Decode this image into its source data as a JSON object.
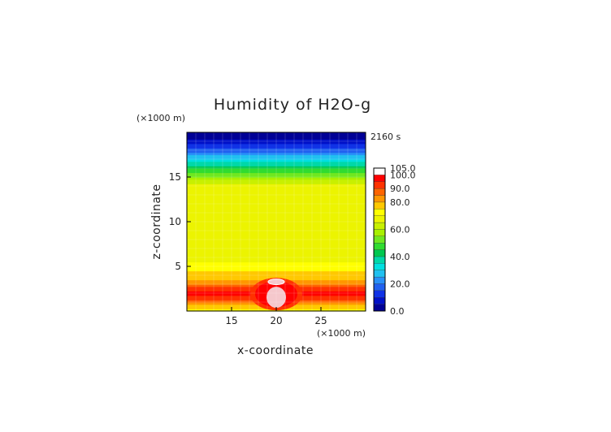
{
  "chart_data": {
    "type": "heatmap",
    "title": "Humidity of H2O-g",
    "xlabel": "x-coordinate",
    "ylabel": "z-coordinate",
    "x_unit": "(×1000 m)",
    "y_unit": "(×1000 m)",
    "time_label": "2160 s",
    "xlim": [
      10,
      30
    ],
    "ylim": [
      0,
      20
    ],
    "x_ticks": [
      15,
      20,
      25
    ],
    "y_ticks": [
      5,
      10,
      15
    ],
    "grid": true,
    "colorbar": {
      "labels": [
        "105.0",
        "100.0",
        "90.0",
        "80.0",
        "60.0",
        "40.0",
        "20.0",
        "0.0"
      ],
      "label_values": [
        105,
        100,
        90,
        80,
        60,
        40,
        20,
        0
      ],
      "levels": [
        0,
        5,
        10,
        15,
        20,
        25,
        30,
        35,
        40,
        45,
        50,
        55,
        60,
        65,
        70,
        75,
        80,
        85,
        90,
        95,
        100,
        105
      ],
      "colors": [
        "#000096",
        "#0010c8",
        "#1032e6",
        "#2060f0",
        "#2890f8",
        "#20c0f0",
        "#00e0e0",
        "#00d8a8",
        "#00c850",
        "#30dc30",
        "#70e820",
        "#a8f000",
        "#c8f000",
        "#ecf400",
        "#ffff00",
        "#ffc800",
        "#ff9600",
        "#ff6400",
        "#ff3200",
        "#ff0000",
        "#ffffff"
      ]
    },
    "profile": {
      "z": [
        0,
        0.5,
        1.0,
        1.5,
        2.0,
        2.5,
        3.0,
        3.5,
        4.0,
        5.0,
        6.0,
        8.0,
        10.0,
        12.0,
        13.5,
        14.5,
        15.5,
        16.0,
        16.5,
        17.0,
        17.5,
        18.0,
        18.5,
        19.0,
        19.5,
        20.0
      ],
      "value": [
        72,
        78,
        84,
        92,
        96,
        94,
        86,
        80,
        77,
        72,
        68,
        66,
        66,
        67,
        70,
        62,
        50,
        44,
        38,
        30,
        24,
        18,
        12,
        7,
        4,
        2
      ]
    },
    "cloud_core": {
      "x_center": 20,
      "z_center": 1.9,
      "value": 103
    }
  }
}
